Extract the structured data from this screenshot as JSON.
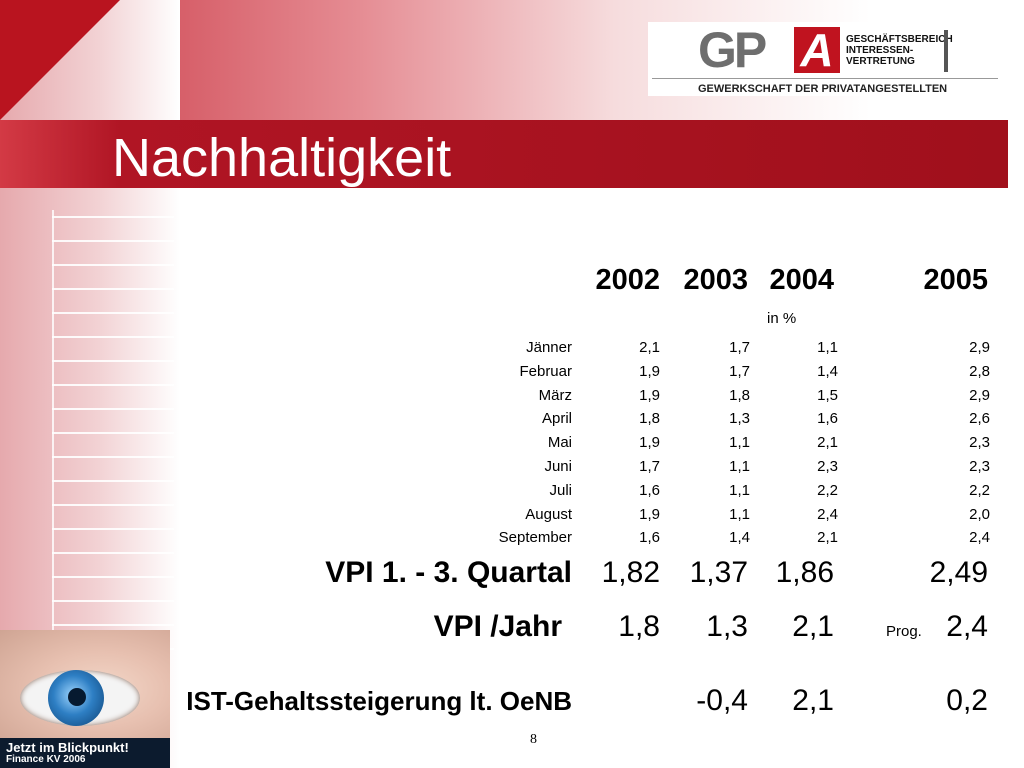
{
  "header": {
    "title": "Nachhaltigkeit",
    "logo": {
      "letters_gp": "GP",
      "letter_a": "A",
      "line1": "GESCHÄFTSBEREICH",
      "line2": "INTERESSEN-",
      "line3": "VERTRETUNG",
      "subline": "GEWERKSCHAFT DER PRIVATANGESTELLTEN"
    }
  },
  "table": {
    "years": [
      "2002",
      "2003",
      "2004",
      "2005"
    ],
    "unit": "in %",
    "months": [
      {
        "label": "Jänner",
        "values": [
          "2,1",
          "1,7",
          "1,1",
          "2,9"
        ]
      },
      {
        "label": "Februar",
        "values": [
          "1,9",
          "1,7",
          "1,4",
          "2,8"
        ]
      },
      {
        "label": "März",
        "values": [
          "1,9",
          "1,8",
          "1,5",
          "2,9"
        ]
      },
      {
        "label": "April",
        "values": [
          "1,8",
          "1,3",
          "1,6",
          "2,6"
        ]
      },
      {
        "label": "Mai",
        "values": [
          "1,9",
          "1,1",
          "2,1",
          "2,3"
        ]
      },
      {
        "label": "Juni",
        "values": [
          "1,7",
          "1,1",
          "2,3",
          "2,3"
        ]
      },
      {
        "label": "Juli",
        "values": [
          "1,6",
          "1,1",
          "2,2",
          "2,2"
        ]
      },
      {
        "label": "August",
        "values": [
          "1,9",
          "1,1",
          "2,4",
          "2,0"
        ]
      },
      {
        "label": "September",
        "values": [
          "1,6",
          "1,4",
          "2,1",
          "2,4"
        ]
      }
    ],
    "vpi_quartal": {
      "label": "VPI 1. - 3. Quartal",
      "values": [
        "1,82",
        "1,37",
        "1,86",
        "2,49"
      ]
    },
    "vpi_jahr": {
      "label": "VPI /Jahr",
      "values": [
        "1,8",
        "1,3",
        "2,1",
        "2,4"
      ],
      "prog_label": "Prog."
    },
    "ist": {
      "label": "IST-Gehaltssteigerung lt. OeNB",
      "values": [
        "",
        "-0,4",
        "2,1",
        "0,2"
      ]
    }
  },
  "footer": {
    "page_number": "8",
    "caption_line1": "Jetzt im Blickpunkt!",
    "caption_line2": "Finance KV 2006"
  },
  "colors": {
    "brand_red": "#a0101c",
    "logo_grey": "#6e6e6e"
  }
}
